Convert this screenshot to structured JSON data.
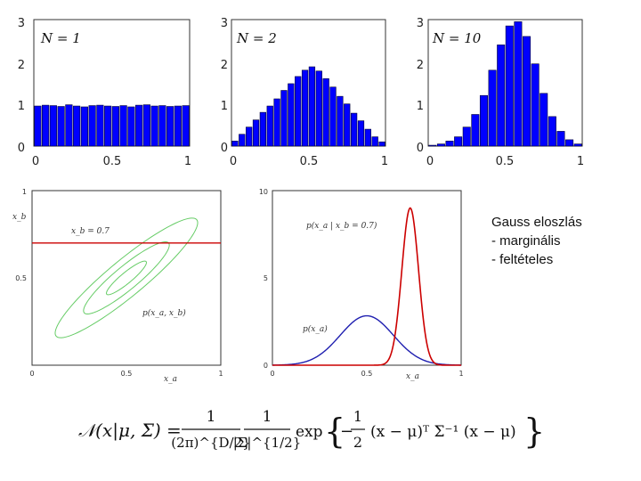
{
  "notes": {
    "lines": [
      "Gauss eloszlás",
      "- marginális",
      "- feltételes"
    ]
  },
  "formula": {
    "lhs": "𝒩(x|μ, Σ) =",
    "frac1_num": "1",
    "frac1_den": "(2π)^{D/2}",
    "frac2_num": "1",
    "frac2_den": "|Σ|^{1/2}",
    "exp": "exp",
    "half_num": "1",
    "half_den": "2",
    "minus": "−",
    "body": "(x − μ)ᵀ Σ⁻¹ (x − μ)",
    "lbrace": "{",
    "rbrace": "}"
  },
  "chart_data": [
    {
      "type": "bar",
      "annotation": "N = 1",
      "xlim": [
        0,
        1
      ],
      "ylim": [
        0,
        3
      ],
      "xticks": [
        "0",
        "0.5",
        "1"
      ],
      "yticks": [
        "0",
        "1",
        "2",
        "3"
      ],
      "bar_color": "#0000ff",
      "values": [
        0.95,
        0.97,
        0.96,
        0.94,
        0.98,
        0.95,
        0.93,
        0.96,
        0.97,
        0.95,
        0.94,
        0.96,
        0.93,
        0.97,
        0.98,
        0.95,
        0.96,
        0.94,
        0.95,
        0.96
      ]
    },
    {
      "type": "bar",
      "annotation": "N = 2",
      "xlim": [
        0,
        1
      ],
      "ylim": [
        0,
        3
      ],
      "xticks": [
        "0",
        "0.5",
        "1"
      ],
      "yticks": [
        "0",
        "1",
        "2",
        "3"
      ],
      "bar_color": "#0000ff",
      "values": [
        0.12,
        0.28,
        0.45,
        0.62,
        0.8,
        0.95,
        1.12,
        1.32,
        1.48,
        1.65,
        1.8,
        1.88,
        1.78,
        1.6,
        1.4,
        1.18,
        1.0,
        0.78,
        0.6,
        0.4,
        0.22,
        0.1
      ]
    },
    {
      "type": "bar",
      "annotation": "N = 10",
      "xlim": [
        0,
        1
      ],
      "ylim": [
        0,
        3
      ],
      "xticks": [
        "0",
        "0.5",
        "1"
      ],
      "yticks": [
        "0",
        "1",
        "2",
        "3"
      ],
      "bar_color": "#0000ff",
      "values": [
        0.02,
        0.05,
        0.12,
        0.22,
        0.45,
        0.75,
        1.2,
        1.8,
        2.4,
        2.85,
        2.95,
        2.6,
        1.95,
        1.25,
        0.7,
        0.35,
        0.15,
        0.05
      ]
    },
    {
      "type": "contour",
      "xlim": [
        0,
        1
      ],
      "ylim": [
        0,
        1
      ],
      "xticks": [
        "0",
        "0.5",
        "1"
      ],
      "yticks": [
        "0.5",
        "1"
      ],
      "xlabel": "x_a",
      "ylabel": "x_b",
      "contour_color": "#66cc66",
      "conditional_line": {
        "y": 0.7,
        "color": "#cc0000",
        "label": "x_b = 0.7"
      },
      "contour_label": "p(x_a, x_b)",
      "mean": [
        0.5,
        0.5
      ],
      "ellipses": [
        {
          "semi_major": 0.14,
          "semi_minor": 0.03,
          "angle_deg": 42
        },
        {
          "semi_major": 0.3,
          "semi_minor": 0.065,
          "angle_deg": 42
        },
        {
          "semi_major": 0.5,
          "semi_minor": 0.1,
          "angle_deg": 42
        }
      ]
    },
    {
      "type": "line",
      "xlim": [
        0,
        1
      ],
      "ylim": [
        0,
        10
      ],
      "xticks": [
        "0",
        "0.5",
        "1"
      ],
      "yticks": [
        "0",
        "5",
        "10"
      ],
      "xlabel": "x_a",
      "series": [
        {
          "name": "p(x_a | x_b = 0.7)",
          "color": "#cc0000",
          "mean": 0.73,
          "std": 0.0443
        },
        {
          "name": "p(x_a)",
          "color": "#1f1fb0",
          "mean": 0.5,
          "std": 0.141
        }
      ]
    }
  ]
}
